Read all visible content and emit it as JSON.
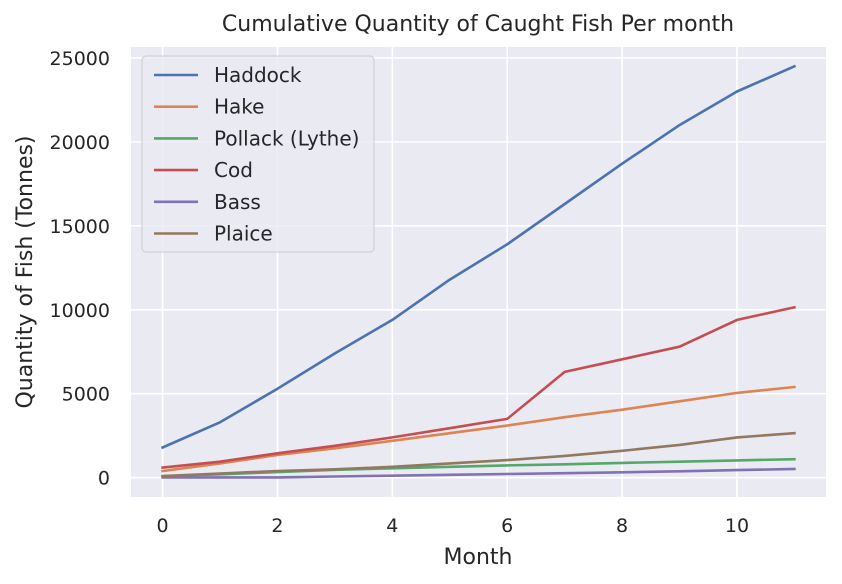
{
  "chart_data": {
    "type": "line",
    "title": "Cumulative Quantity of Caught Fish Per month",
    "xlabel": "Month",
    "ylabel": "Quantity of Fish (Tonnes)",
    "xlim": [
      -0.55,
      11.55
    ],
    "ylim": [
      -1150,
      25650
    ],
    "xticks": [
      0,
      2,
      4,
      6,
      8,
      10
    ],
    "yticks": [
      0,
      5000,
      10000,
      15000,
      20000,
      25000
    ],
    "grid": true,
    "legend_position": "upper-left",
    "x": [
      0,
      1,
      2,
      3,
      4,
      5,
      6,
      7,
      8,
      9,
      10,
      11
    ],
    "series": [
      {
        "name": "Haddock",
        "color": "#4c72b0",
        "values": [
          1800,
          3300,
          5300,
          7400,
          9400,
          11800,
          13900,
          16300,
          18700,
          21000,
          23000,
          24500
        ]
      },
      {
        "name": "Hake",
        "color": "#dd8452",
        "values": [
          400,
          850,
          1350,
          1750,
          2200,
          2650,
          3100,
          3600,
          4050,
          4550,
          5050,
          5400
        ]
      },
      {
        "name": "Pollack (Lythe)",
        "color": "#55a868",
        "values": [
          80,
          200,
          330,
          470,
          560,
          650,
          730,
          800,
          880,
          950,
          1030,
          1100
        ]
      },
      {
        "name": "Cod",
        "color": "#c44e52",
        "values": [
          600,
          950,
          1450,
          1900,
          2400,
          2950,
          3500,
          6300,
          7050,
          7800,
          9400,
          10150
        ]
      },
      {
        "name": "Bass",
        "color": "#8172b3",
        "values": [
          10,
          15,
          20,
          70,
          120,
          170,
          220,
          270,
          320,
          380,
          450,
          520
        ]
      },
      {
        "name": "Plaice",
        "color": "#937860",
        "values": [
          100,
          250,
          400,
          500,
          650,
          850,
          1050,
          1300,
          1600,
          1950,
          2400,
          2650
        ]
      }
    ]
  }
}
